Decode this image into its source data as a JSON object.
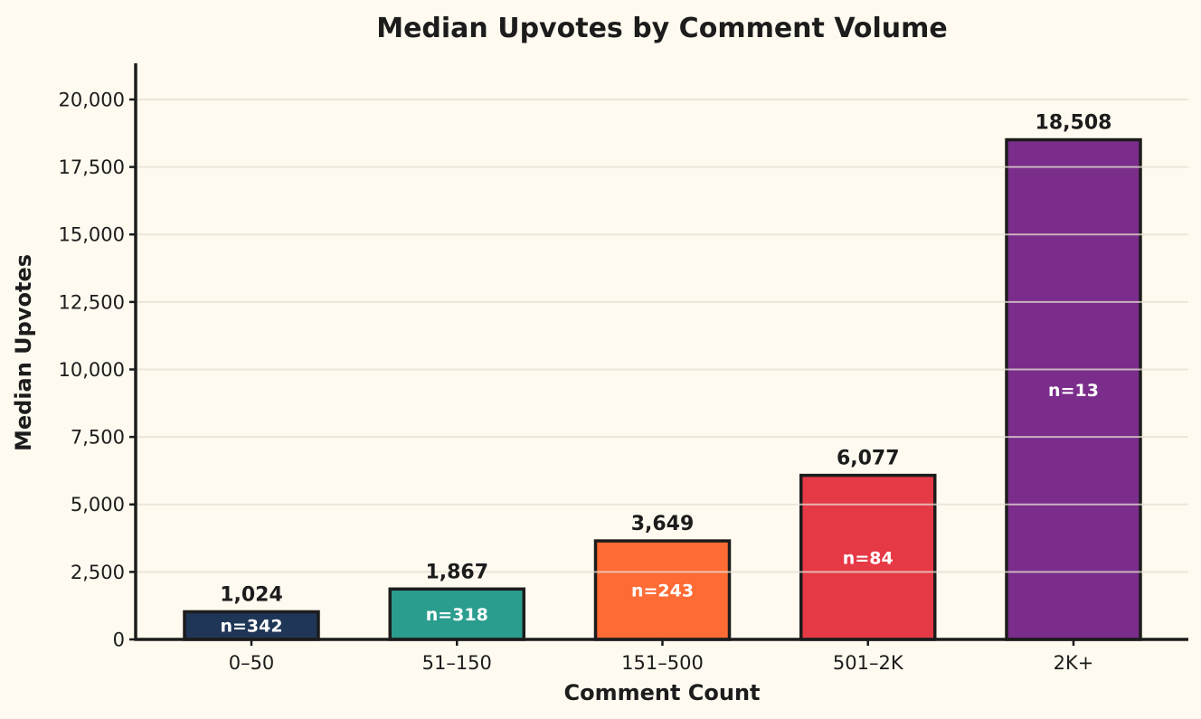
{
  "chart_data": {
    "type": "bar",
    "title": "Median Upvotes by Comment Volume",
    "xlabel": "Comment Count",
    "ylabel": "Median Upvotes",
    "categories": [
      "0–50",
      "51–150",
      "151–500",
      "501–2K",
      "2K+"
    ],
    "values": [
      1024,
      1867,
      3649,
      6077,
      18508
    ],
    "value_labels": [
      "1,024",
      "1,867",
      "3,649",
      "6,077",
      "18,508"
    ],
    "n_labels": [
      "n=342",
      "n=318",
      "n=243",
      "n=84",
      "n=13"
    ],
    "colors": [
      "#1f3657",
      "#2a9d8f",
      "#ff6b35",
      "#e63946",
      "#7b2d8b"
    ],
    "ylim": [
      0,
      21340
    ],
    "yticks": [
      0,
      2500,
      5000,
      7500,
      10000,
      12500,
      15000,
      17500,
      20000
    ],
    "ytick_labels": [
      "0",
      "2,500",
      "5,000",
      "7,500",
      "10,000",
      "12,500",
      "15,000",
      "17,500",
      "20,000"
    ],
    "grid": "y",
    "legend": "none",
    "background": "#fffaef",
    "edge_color": "#1c1c1c"
  }
}
